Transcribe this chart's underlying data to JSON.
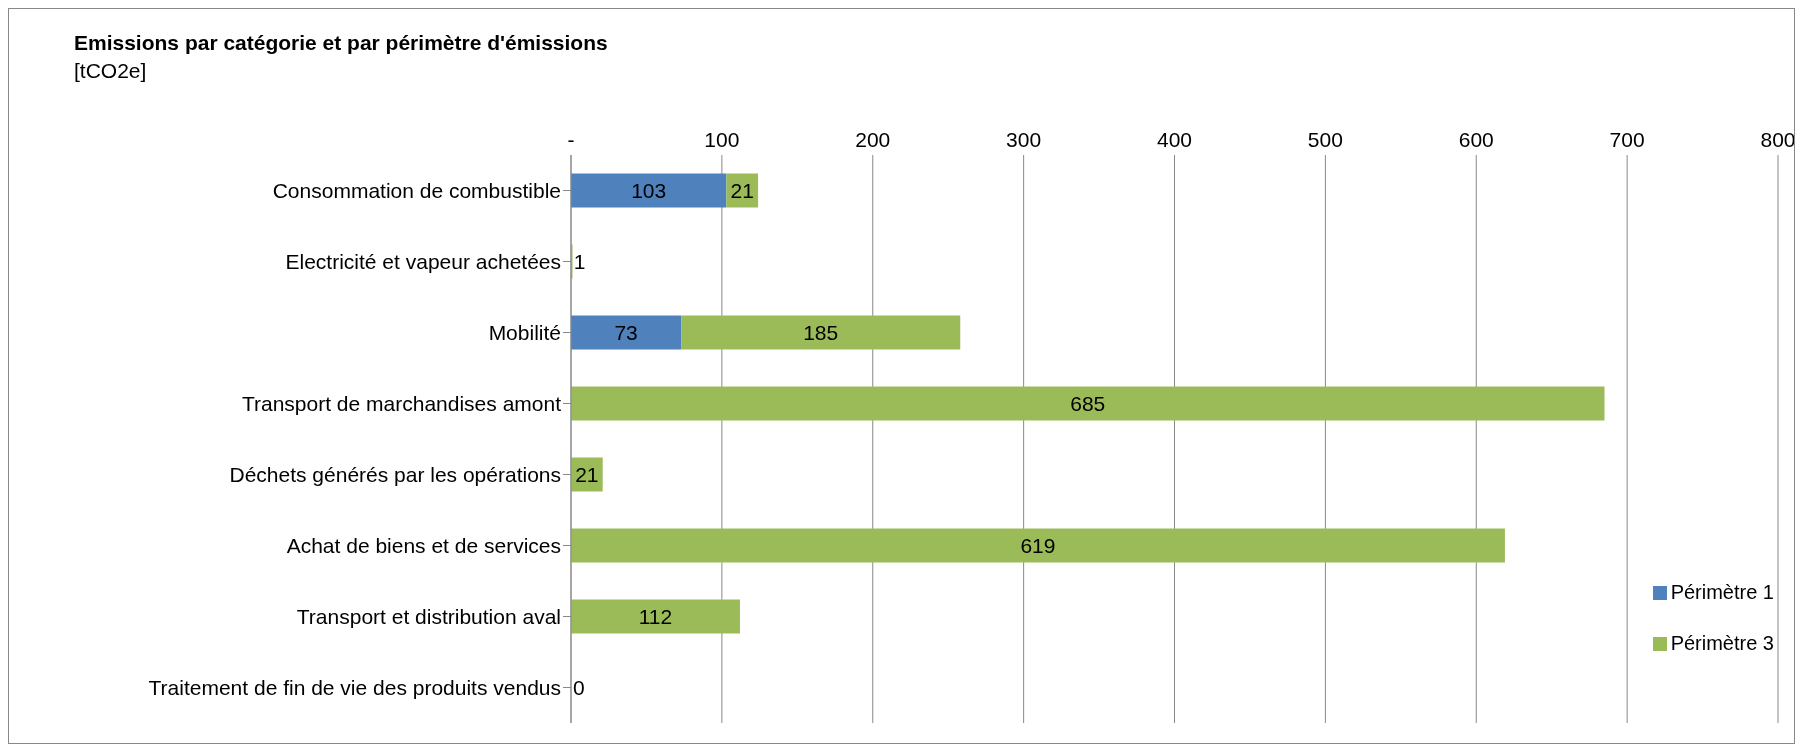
{
  "chart_data": {
    "type": "bar",
    "orientation": "horizontal",
    "stacked": true,
    "title": "Emissions par catégorie et par périmètre d'émissions",
    "subtitle": "[tCO2e]",
    "categories": [
      "Consommation de combustible",
      "Electricité et vapeur achetées",
      "Mobilité",
      "Transport de marchandises amont",
      "Déchets générés par les opérations",
      "Achat de biens et de services",
      "Transport et distribution aval",
      "Traitement de fin de vie des produits vendus"
    ],
    "series": [
      {
        "name": "Périmètre 1",
        "color": "#4f81bd",
        "values": [
          103,
          null,
          73,
          null,
          null,
          null,
          null,
          null
        ]
      },
      {
        "name": "Périmètre 3",
        "color": "#9bbb59",
        "values": [
          21,
          1,
          185,
          685,
          21,
          619,
          112,
          0
        ]
      }
    ],
    "xlim": [
      0,
      800
    ],
    "xticks": [
      {
        "value": 0,
        "label": "-"
      },
      100,
      200,
      300,
      400,
      500,
      600,
      700,
      800
    ],
    "grid": "x",
    "legend": "bottom right",
    "data_labels": true
  }
}
